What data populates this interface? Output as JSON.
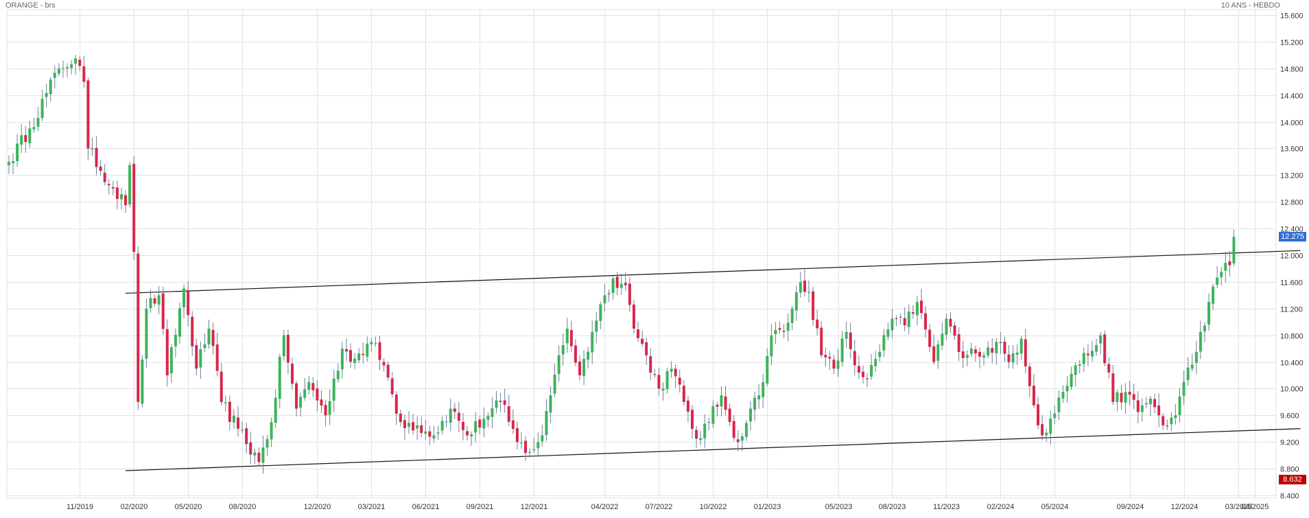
{
  "header": {
    "instrument": "ORANGE - brs",
    "period": "10 ANS - HEBDO"
  },
  "badges": {
    "last_price": "12.275",
    "low_marker": "8.632"
  },
  "colors": {
    "up": "#3cb45a",
    "down": "#d9264b",
    "wick": "#6b7d99",
    "grid": "#e2e2e2",
    "axis_text": "#333333",
    "last_price_badge": "#2f6fd6",
    "low_badge": "#c00000",
    "trendline": "#111111"
  },
  "chart_data": {
    "type": "candlestick",
    "title": "ORANGE - brs",
    "subtitle": "10 ANS - HEBDO",
    "ylim": [
      8.4,
      15.6
    ],
    "y_ticks": [
      "8.400",
      "8.800",
      "9.200",
      "9.600",
      "10.000",
      "10.400",
      "10.800",
      "11.200",
      "11.600",
      "12.000",
      "12.400",
      "12.800",
      "13.200",
      "13.600",
      "14.000",
      "14.400",
      "14.800",
      "15.200",
      "15.600"
    ],
    "x_ticks": [
      {
        "label": "11/2019",
        "week": 17
      },
      {
        "label": "02/2020",
        "week": 30
      },
      {
        "label": "05/2020",
        "week": 43
      },
      {
        "label": "08/2020",
        "week": 56
      },
      {
        "label": "12/2020",
        "week": 74
      },
      {
        "label": "03/2021",
        "week": 87
      },
      {
        "label": "06/2021",
        "week": 100
      },
      {
        "label": "09/2021",
        "week": 113
      },
      {
        "label": "12/2021",
        "week": 126
      },
      {
        "label": "04/2022",
        "week": 143
      },
      {
        "label": "07/2022",
        "week": 156
      },
      {
        "label": "10/2022",
        "week": 169
      },
      {
        "label": "01/2023",
        "week": 182
      },
      {
        "label": "05/2023",
        "week": 199
      },
      {
        "label": "08/2023",
        "week": 212
      },
      {
        "label": "11/2023",
        "week": 225
      },
      {
        "label": "02/2024",
        "week": 238
      },
      {
        "label": "05/2024",
        "week": 251
      },
      {
        "label": "09/2024",
        "week": 269
      },
      {
        "label": "12/2024",
        "week": 282
      },
      {
        "label": "03/2025",
        "week": 295
      },
      {
        "label": "04/2025",
        "week": 299
      }
    ],
    "last_price": 12.275,
    "low_marker": 8.632,
    "trendlines": [
      {
        "name": "channel-top",
        "from": {
          "week": 28,
          "value": 11.43
        },
        "to": {
          "week": 310,
          "value": 12.07
        }
      },
      {
        "name": "channel-bottom",
        "from": {
          "week": 28,
          "value": 8.77
        },
        "to": {
          "week": 310,
          "value": 9.4
        }
      }
    ],
    "anchors": [
      [
        0,
        13.4
      ],
      [
        5,
        13.9
      ],
      [
        12,
        14.8
      ],
      [
        16,
        14.95
      ],
      [
        18,
        14.6
      ],
      [
        19,
        13.6
      ],
      [
        25,
        13.0
      ],
      [
        28,
        12.75
      ],
      [
        29,
        13.35
      ],
      [
        30,
        12.05
      ],
      [
        31,
        9.8
      ],
      [
        33,
        11.2
      ],
      [
        36,
        11.4
      ],
      [
        38,
        10.2
      ],
      [
        42,
        11.5
      ],
      [
        45,
        10.3
      ],
      [
        48,
        10.9
      ],
      [
        51,
        9.8
      ],
      [
        55,
        9.4
      ],
      [
        60,
        8.9
      ],
      [
        63,
        9.5
      ],
      [
        66,
        10.8
      ],
      [
        69,
        9.7
      ],
      [
        72,
        10.1
      ],
      [
        76,
        9.6
      ],
      [
        80,
        10.6
      ],
      [
        83,
        10.45
      ],
      [
        87,
        10.7
      ],
      [
        90,
        10.35
      ],
      [
        94,
        9.5
      ],
      [
        98,
        9.45
      ],
      [
        102,
        9.3
      ],
      [
        106,
        9.7
      ],
      [
        110,
        9.3
      ],
      [
        114,
        9.55
      ],
      [
        118,
        9.8
      ],
      [
        122,
        9.2
      ],
      [
        125,
        9.05
      ],
      [
        128,
        9.3
      ],
      [
        130,
        9.9
      ],
      [
        132,
        10.5
      ],
      [
        134,
        10.9
      ],
      [
        137,
        10.2
      ],
      [
        140,
        10.85
      ],
      [
        143,
        11.4
      ],
      [
        145,
        11.65
      ],
      [
        148,
        11.55
      ],
      [
        150,
        10.9
      ],
      [
        153,
        10.5
      ],
      [
        156,
        10.0
      ],
      [
        159,
        10.3
      ],
      [
        162,
        9.8
      ],
      [
        165,
        9.25
      ],
      [
        168,
        9.5
      ],
      [
        171,
        9.9
      ],
      [
        173,
        9.5
      ],
      [
        175,
        9.2
      ],
      [
        178,
        9.7
      ],
      [
        180,
        9.9
      ],
      [
        183,
        10.8
      ],
      [
        186,
        10.85
      ],
      [
        188,
        11.2
      ],
      [
        190,
        11.6
      ],
      [
        192,
        11.45
      ],
      [
        195,
        10.5
      ],
      [
        198,
        10.3
      ],
      [
        201,
        10.85
      ],
      [
        203,
        10.35
      ],
      [
        206,
        10.15
      ],
      [
        209,
        10.55
      ],
      [
        212,
        11.05
      ],
      [
        215,
        10.95
      ],
      [
        218,
        11.3
      ],
      [
        222,
        10.4
      ],
      [
        225,
        11.05
      ],
      [
        228,
        10.55
      ],
      [
        231,
        10.6
      ],
      [
        234,
        10.5
      ],
      [
        237,
        10.7
      ],
      [
        240,
        10.4
      ],
      [
        243,
        10.75
      ],
      [
        246,
        9.75
      ],
      [
        248,
        9.3
      ],
      [
        250,
        9.55
      ],
      [
        253,
        9.95
      ],
      [
        256,
        10.35
      ],
      [
        259,
        10.5
      ],
      [
        262,
        10.8
      ],
      [
        265,
        9.8
      ],
      [
        268,
        9.95
      ],
      [
        271,
        9.65
      ],
      [
        274,
        9.85
      ],
      [
        277,
        9.45
      ],
      [
        280,
        9.6
      ],
      [
        282,
        10.1
      ],
      [
        285,
        10.55
      ],
      [
        288,
        11.3
      ],
      [
        291,
        11.75
      ],
      [
        293,
        11.85
      ],
      [
        294,
        12.275
      ]
    ]
  }
}
